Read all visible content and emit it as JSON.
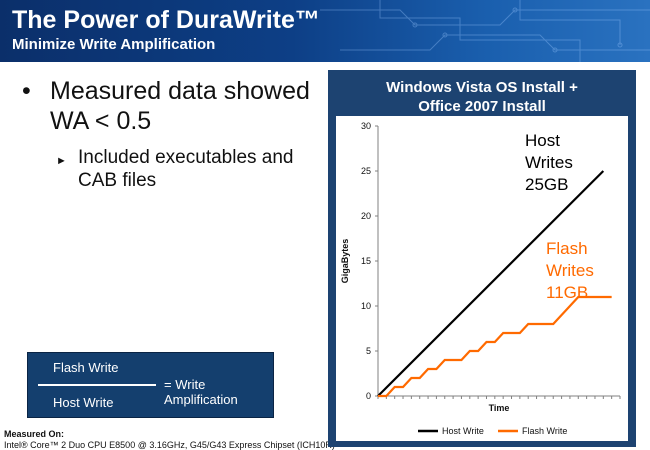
{
  "slide": {
    "title": "The Power of DuraWrite™",
    "subtitle": "Minimize Write Amplification"
  },
  "bullets": {
    "main_marker": "•",
    "main": "Measured data showed WA < 0.5",
    "sub_marker": "►",
    "sub": "Included executables and CAB files"
  },
  "formula": {
    "numerator": "Flash Write",
    "equals": "= Write Amplification",
    "denominator": "Host Write"
  },
  "footer": {
    "label": "Measured On:",
    "text": "Intel® Core™ 2 Duo CPU E8500 @ 3.16GHz, G45/G43 Express Chipset (ICH10R)"
  },
  "colors": {
    "header_bg": "#0d3f86",
    "panel_bg": "#1d4371",
    "host_line": "#000000",
    "flash_line": "#ff6a00"
  },
  "chart_data": {
    "type": "line",
    "title": "Windows Vista OS Install + Office 2007 Install",
    "title_lines": [
      "Windows Vista OS Install +",
      "Office 2007 Install"
    ],
    "xlabel": "Time",
    "ylabel": "GigaBytes",
    "ylim": [
      0,
      30
    ],
    "yticks": [
      0,
      5,
      10,
      15,
      20,
      25,
      30
    ],
    "grid": false,
    "legend_position": "bottom",
    "series": [
      {
        "name": "Host Write",
        "color": "#000000",
        "x": [
          0,
          27
        ],
        "y": [
          0,
          25
        ]
      },
      {
        "name": "Flash Write",
        "color": "#ff6a00",
        "x": [
          0,
          1,
          2,
          3,
          4,
          5,
          6,
          7,
          8,
          9,
          10,
          11,
          12,
          13,
          14,
          15,
          16,
          17,
          18,
          19,
          20,
          21,
          22,
          23,
          24,
          25,
          26,
          27,
          28
        ],
        "y": [
          0,
          0,
          1,
          1,
          2,
          2,
          3,
          3,
          4,
          4,
          4,
          5,
          5,
          6,
          6,
          7,
          7,
          7,
          8,
          8,
          8,
          8,
          9,
          10,
          11,
          11,
          11,
          11,
          11
        ]
      }
    ],
    "annotations": [
      {
        "series": "Host Write",
        "lines": [
          "Host",
          "Writes",
          "25GB"
        ],
        "color": "#000000"
      },
      {
        "series": "Flash Write",
        "lines": [
          "Flash",
          "Writes",
          "11GB"
        ],
        "color": "#ff6a00"
      }
    ]
  }
}
